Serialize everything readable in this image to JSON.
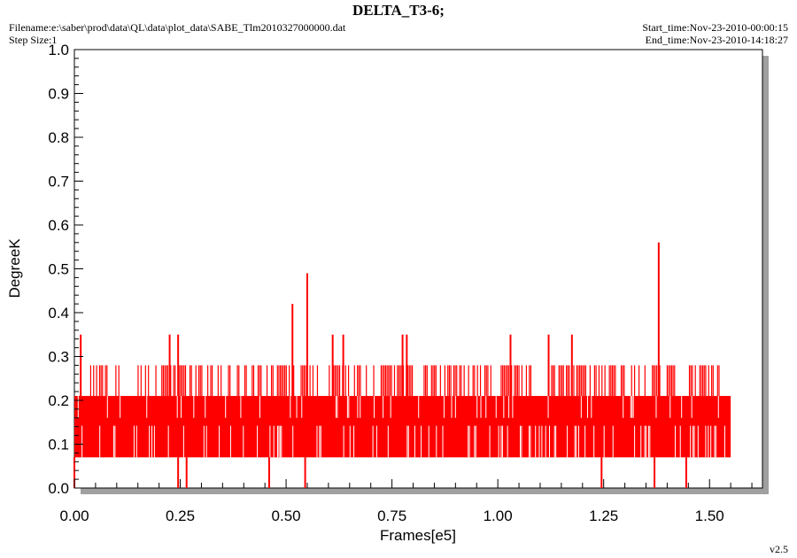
{
  "header": {
    "title": "DELTA_T3-6;",
    "filename": "Filename:e:\\saber\\prod\\data\\QL\\data\\plot_data\\SABE_Tlm2010327000000.dat",
    "step_size": "Step Size:1",
    "start_time": "Start_time:Nov-23-2010-00:00:15",
    "end_time": "End_time:Nov-23-2010-14:18:27"
  },
  "footer": {
    "version": "v2.5"
  },
  "colors": {
    "series": "#ff0000",
    "plot_bg": "#ffffff",
    "shadow": "#a0a0a0",
    "axis": "#000000"
  },
  "chart_data": {
    "type": "line",
    "title": "DELTA_T3-6;",
    "xlabel": "Frames[e5]",
    "ylabel": "DegreeK",
    "xlim": [
      0,
      1.625
    ],
    "ylim": [
      0,
      1.0
    ],
    "x_ticks": [
      "0.00",
      "0.25",
      "0.50",
      "0.75",
      "1.00",
      "1.25",
      "1.50"
    ],
    "y_ticks": [
      "0.0",
      "0.1",
      "0.2",
      "0.3",
      "0.4",
      "0.5",
      "0.6",
      "0.7",
      "0.8",
      "0.9",
      "1.0"
    ],
    "grid": false,
    "series": [
      {
        "color": "#ff0000",
        "description": "dense noisy trace, mostly oscillating between 0.07 and 0.21 from x=0.0 to x=1.55",
        "band": {
          "x_start": 0.0,
          "x_end": 1.55,
          "low": 0.07,
          "high": 0.21,
          "upper_level": 0.28
        },
        "upper_segments": [
          [
            0.03,
            0.115
          ],
          [
            0.15,
            0.58
          ],
          [
            0.6,
            0.8
          ],
          [
            0.82,
            1.08
          ],
          [
            1.12,
            1.35
          ],
          [
            1.36,
            1.42
          ],
          [
            1.45,
            1.55
          ]
        ],
        "spikes_up": [
          {
            "x": 0.015,
            "y": 0.35
          },
          {
            "x": 0.225,
            "y": 0.35
          },
          {
            "x": 0.245,
            "y": 0.35
          },
          {
            "x": 0.515,
            "y": 0.42
          },
          {
            "x": 0.55,
            "y": 0.49
          },
          {
            "x": 0.61,
            "y": 0.35
          },
          {
            "x": 0.635,
            "y": 0.35
          },
          {
            "x": 0.775,
            "y": 0.35
          },
          {
            "x": 0.785,
            "y": 0.35
          },
          {
            "x": 1.03,
            "y": 0.35
          },
          {
            "x": 1.12,
            "y": 0.35
          },
          {
            "x": 1.175,
            "y": 0.35
          },
          {
            "x": 1.38,
            "y": 0.56
          }
        ],
        "dips_down": [
          {
            "x": 0.0,
            "y": 0.0
          },
          {
            "x": 0.245,
            "y": 0.0
          },
          {
            "x": 0.265,
            "y": 0.0
          },
          {
            "x": 0.46,
            "y": 0.0
          },
          {
            "x": 0.545,
            "y": 0.0
          },
          {
            "x": 1.245,
            "y": 0.0
          },
          {
            "x": 1.37,
            "y": 0.0
          },
          {
            "x": 1.445,
            "y": 0.0
          }
        ]
      }
    ]
  }
}
